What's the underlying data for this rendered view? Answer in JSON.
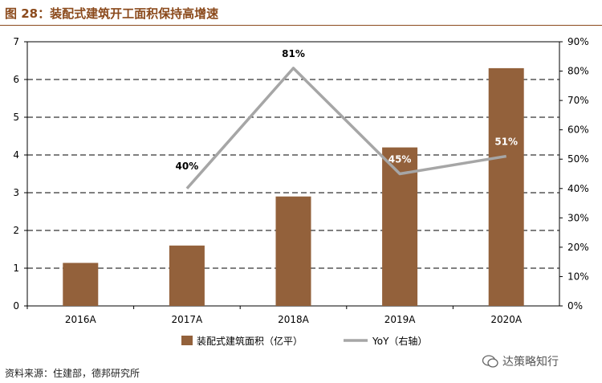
{
  "title": "图 28：装配式建筑开工面积保持高增速",
  "source": "资料来源：住建部，德邦研究所",
  "watermark": "达策略知行",
  "colors": {
    "bar": "#93613b",
    "line": "#a6a6a6",
    "title": "#8b4a1c"
  },
  "chart_data": {
    "type": "bar",
    "categories": [
      "2016A",
      "2017A",
      "2018A",
      "2019A",
      "2020A"
    ],
    "series": [
      {
        "name": "装配式建筑面积（亿平）",
        "type": "bar",
        "axis": "left",
        "values": [
          1.14,
          1.6,
          2.9,
          4.2,
          6.3
        ]
      },
      {
        "name": "YoY（右轴）",
        "type": "line",
        "axis": "right",
        "values": [
          null,
          40,
          81,
          45,
          51
        ],
        "labels": [
          "",
          "40%",
          "81%",
          "45%",
          "51%"
        ]
      }
    ],
    "ylim_left": [
      0,
      7
    ],
    "yticks_left": [
      "0",
      "1",
      "2",
      "3",
      "4",
      "5",
      "6",
      "7"
    ],
    "ylim_right": [
      0,
      90
    ],
    "yticks_right": [
      "0%",
      "10%",
      "20%",
      "30%",
      "40%",
      "50%",
      "60%",
      "70%",
      "80%",
      "90%"
    ],
    "grid": true,
    "legend": "bottom"
  }
}
